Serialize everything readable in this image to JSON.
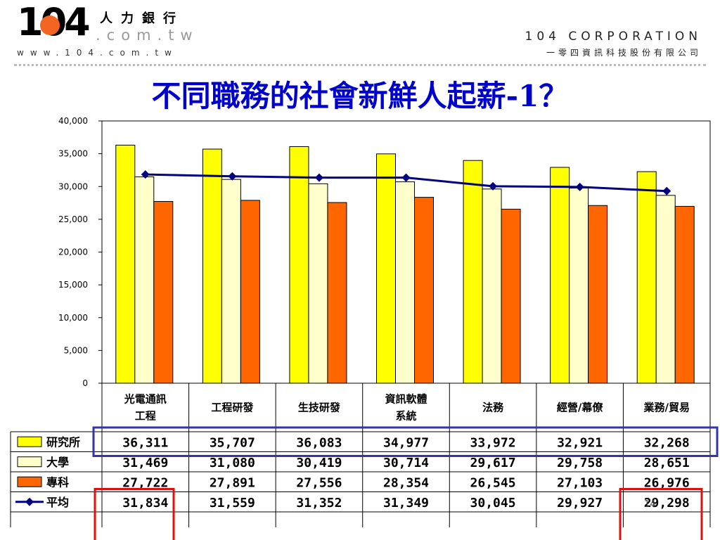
{
  "header": {
    "logo_number": "104",
    "logo_chinese": "人力銀行",
    "logo_domain": ".com.tw",
    "logo_www": "www.104.com.tw",
    "corp_english": "104 CORPORATION",
    "corp_chinese": "一零四資訊科技股份有限公司"
  },
  "slide": {
    "title": "不同職務的社會新鮮人起薪-1？",
    "page_number": "14"
  },
  "colors": {
    "title": "#0000cc",
    "research": "#ffff00",
    "university": "#ffffcc",
    "college": "#ff6600",
    "average": "#000080",
    "blue_highlight": "#3333aa",
    "red_highlight": "#e01010"
  },
  "chart_data": {
    "type": "bar",
    "categories": [
      [
        "光電通訊",
        "工程"
      ],
      [
        "工程研發"
      ],
      [
        "生技研發"
      ],
      [
        "資訊軟體",
        "系統"
      ],
      [
        "法務"
      ],
      [
        "經營/幕僚"
      ],
      [
        "業務/貿易"
      ]
    ],
    "ylim": [
      0,
      40000
    ],
    "yticks": [
      "0",
      "5,000",
      "10,000",
      "15,000",
      "20,000",
      "25,000",
      "30,000",
      "35,000",
      "40,000"
    ],
    "grid": false,
    "legend": "table",
    "series": [
      {
        "name": "研究所",
        "kind": "bar",
        "color": "#ffff00",
        "values": [
          36311,
          35707,
          36083,
          34977,
          33972,
          32921,
          32268
        ],
        "labels": [
          "36,311",
          "35,707",
          "36,083",
          "34,977",
          "33,972",
          "32,921",
          "32,268"
        ]
      },
      {
        "name": "大學",
        "kind": "bar",
        "color": "#ffffcc",
        "values": [
          31469,
          31080,
          30419,
          30714,
          29617,
          29758,
          28651
        ],
        "labels": [
          "31,469",
          "31,080",
          "30,419",
          "30,714",
          "29,617",
          "29,758",
          "28,651"
        ]
      },
      {
        "name": "專科",
        "kind": "bar",
        "color": "#ff6600",
        "values": [
          27722,
          27891,
          27556,
          28354,
          26545,
          27103,
          26976
        ],
        "labels": [
          "27,722",
          "27,891",
          "27,556",
          "28,354",
          "26,545",
          "27,103",
          "26,976"
        ]
      },
      {
        "name": "平均",
        "kind": "line",
        "color": "#000080",
        "values": [
          31834,
          31559,
          31352,
          31349,
          30045,
          29927,
          29298
        ],
        "labels": [
          "31,834",
          "31,559",
          "31,352",
          "31,349",
          "30,045",
          "29,927",
          "29,298"
        ]
      }
    ]
  }
}
